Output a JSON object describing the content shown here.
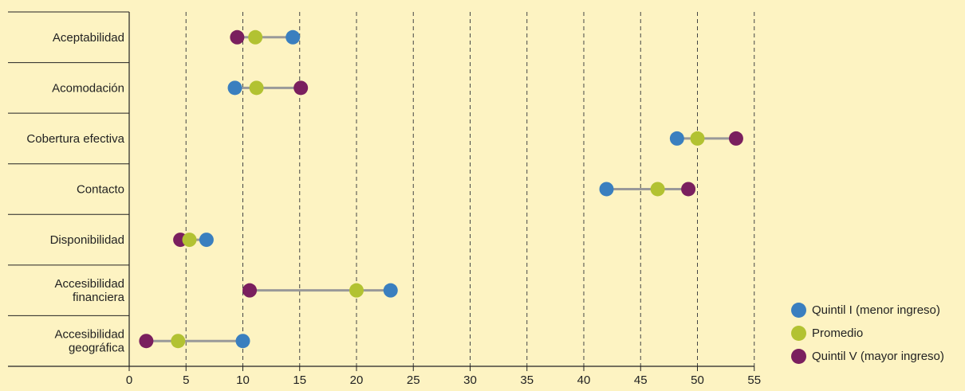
{
  "chart_data": {
    "type": "dumbbell",
    "categories": [
      [
        "Aceptabilidad"
      ],
      [
        "Acomodación"
      ],
      [
        "Cobertura efectiva"
      ],
      [
        "Contacto"
      ],
      [
        "Disponibilidad"
      ],
      [
        "Accesibilidad",
        "financiera"
      ],
      [
        "Accesibilidad",
        "geográfica"
      ]
    ],
    "series": [
      {
        "name": "Quintil I (menor ingreso)",
        "color": "#3a7fbf",
        "values": [
          14.4,
          9.3,
          48.2,
          42.0,
          6.8,
          23.0,
          10.0
        ]
      },
      {
        "name": "Promedio",
        "color": "#b2c232",
        "values": [
          11.1,
          11.2,
          50.0,
          46.5,
          5.3,
          20.0,
          4.3
        ]
      },
      {
        "name": "Quintil V (mayor ingreso)",
        "color": "#7a1f5e",
        "values": [
          9.5,
          15.1,
          53.4,
          49.2,
          4.5,
          10.6,
          1.5
        ]
      }
    ],
    "x_ticks": [
      0,
      5,
      10,
      15,
      20,
      25,
      30,
      35,
      40,
      45,
      50,
      55
    ],
    "xlim": [
      0,
      55
    ],
    "grid": "vertical-dashed",
    "legend_position": "bottom-right",
    "connector_color": "#999999",
    "background": "#fdf3c2"
  }
}
